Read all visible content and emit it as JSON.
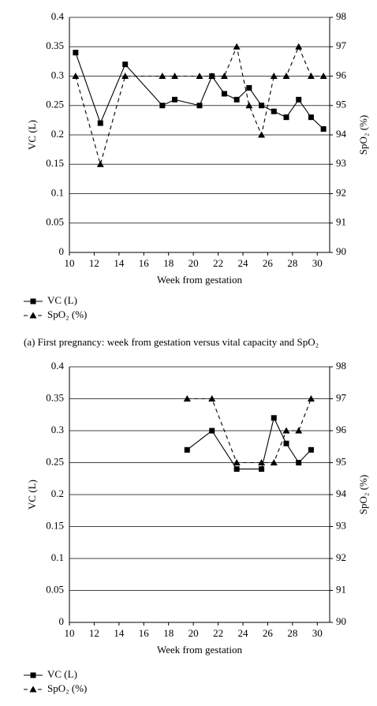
{
  "chart_data": [
    {
      "type": "line",
      "caption": "(a) First pregnancy: week from gestation versus vital capacity and SpO₂",
      "x_label": "Week from gestation",
      "y_label": "VC (L)",
      "y2_label": "SpO₂ (%)",
      "x": [
        10.5,
        12.5,
        14.5,
        17.5,
        18.5,
        20.5,
        21.5,
        22.5,
        23.5,
        24.5,
        25.5,
        26.5,
        27.5,
        28.5,
        29.5,
        30.5
      ],
      "series": [
        {
          "name": "VC (L)",
          "color": "#000000",
          "dash": false,
          "marker": "square",
          "values": [
            0.34,
            0.22,
            0.32,
            0.25,
            0.26,
            0.25,
            0.3,
            0.27,
            0.26,
            0.28,
            0.25,
            0.24,
            0.23,
            0.26,
            0.23,
            0.21
          ]
        },
        {
          "name": "SpO₂ (%)",
          "color": "#000000",
          "dash": true,
          "marker": "triangle",
          "axis": "y2",
          "values": [
            96,
            93,
            96,
            96,
            96,
            96,
            96,
            96,
            97,
            95,
            94,
            96,
            96,
            97,
            96,
            96
          ]
        }
      ],
      "xlim": [
        10,
        31
      ],
      "xticks": [
        10,
        12,
        14,
        16,
        18,
        20,
        22,
        24,
        26,
        28,
        30
      ],
      "ylim": [
        0,
        0.4
      ],
      "yticks": [
        0,
        0.05,
        0.1,
        0.15,
        0.2,
        0.25,
        0.3,
        0.35,
        0.4
      ],
      "y2lim": [
        90,
        98
      ],
      "y2ticks": [
        90,
        91,
        92,
        93,
        94,
        95,
        96,
        97,
        98
      ],
      "grid": true
    },
    {
      "type": "line",
      "x_label": "Week from gestation",
      "y_label": "VC (L)",
      "y2_label": "SpO₂ (%)",
      "x": [
        19.5,
        21.5,
        23.5,
        25.5,
        26.5,
        27.5,
        28.5,
        29.5
      ],
      "series": [
        {
          "name": "VC (L)",
          "color": "#000000",
          "dash": false,
          "marker": "square",
          "values": [
            0.27,
            0.3,
            0.24,
            0.24,
            0.32,
            0.28,
            0.25,
            0.27
          ]
        },
        {
          "name": "SpO₂ (%)",
          "color": "#000000",
          "dash": true,
          "marker": "triangle",
          "axis": "y2",
          "values": [
            97,
            97,
            95,
            95,
            95,
            96,
            96,
            97
          ]
        }
      ],
      "xlim": [
        10,
        31
      ],
      "xticks": [
        10,
        12,
        14,
        16,
        18,
        20,
        22,
        24,
        26,
        28,
        30
      ],
      "ylim": [
        0,
        0.4
      ],
      "yticks": [
        0,
        0.05,
        0.1,
        0.15,
        0.2,
        0.25,
        0.3,
        0.35,
        0.4
      ],
      "y2lim": [
        90,
        98
      ],
      "y2ticks": [
        90,
        91,
        92,
        93,
        94,
        95,
        96,
        97,
        98
      ],
      "grid": true
    }
  ]
}
